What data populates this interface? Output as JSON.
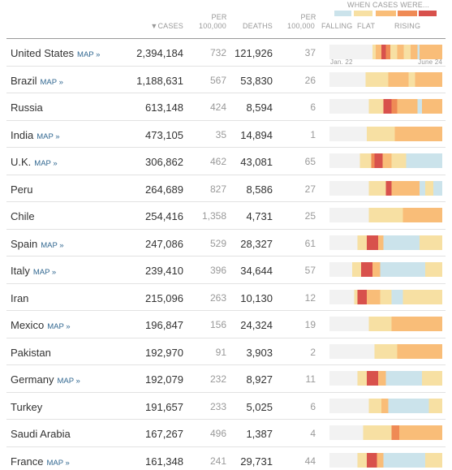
{
  "header": {
    "sort_arrow": "▼",
    "cases": "CASES",
    "cases_per_top": "PER",
    "cases_per_bottom": "100,000",
    "deaths": "DEATHS",
    "deaths_per_top": "PER",
    "deaths_per_bottom": "100,000",
    "legend_title": "WHEN CASES WERE...",
    "falling": "FALLING",
    "flat": "FLAT",
    "rising": "RISING",
    "start_date": "Jan. 22",
    "end_date": "June 24"
  },
  "table": {
    "rows": [
      {
        "country": "United States",
        "map": "MAP »",
        "cases": "2,394,184",
        "cases_per_100k": "732",
        "deaths": "121,926",
        "deaths_per_100k": "37"
      },
      {
        "country": "Brazil",
        "map": "MAP »",
        "cases": "1,188,631",
        "cases_per_100k": "567",
        "deaths": "53,830",
        "deaths_per_100k": "26"
      },
      {
        "country": "Russia",
        "cases": "613,148",
        "cases_per_100k": "424",
        "deaths": "8,594",
        "deaths_per_100k": "6"
      },
      {
        "country": "India",
        "map": "MAP »",
        "cases": "473,105",
        "cases_per_100k": "35",
        "deaths": "14,894",
        "deaths_per_100k": "1"
      },
      {
        "country": "U.K.",
        "map": "MAP »",
        "cases": "306,862",
        "cases_per_100k": "462",
        "deaths": "43,081",
        "deaths_per_100k": "65"
      },
      {
        "country": "Peru",
        "cases": "264,689",
        "cases_per_100k": "827",
        "deaths": "8,586",
        "deaths_per_100k": "27"
      },
      {
        "country": "Chile",
        "cases": "254,416",
        "cases_per_100k": "1,358",
        "deaths": "4,731",
        "deaths_per_100k": "25"
      },
      {
        "country": "Spain",
        "map": "MAP »",
        "cases": "247,086",
        "cases_per_100k": "529",
        "deaths": "28,327",
        "deaths_per_100k": "61"
      },
      {
        "country": "Italy",
        "map": "MAP »",
        "cases": "239,410",
        "cases_per_100k": "396",
        "deaths": "34,644",
        "deaths_per_100k": "57"
      },
      {
        "country": "Iran",
        "cases": "215,096",
        "cases_per_100k": "263",
        "deaths": "10,130",
        "deaths_per_100k": "12"
      },
      {
        "country": "Mexico",
        "map": "MAP »",
        "cases": "196,847",
        "cases_per_100k": "156",
        "deaths": "24,324",
        "deaths_per_100k": "19"
      },
      {
        "country": "Pakistan",
        "cases": "192,970",
        "cases_per_100k": "91",
        "deaths": "3,903",
        "deaths_per_100k": "2"
      },
      {
        "country": "Germany",
        "map": "MAP »",
        "cases": "192,079",
        "cases_per_100k": "232",
        "deaths": "8,927",
        "deaths_per_100k": "11"
      },
      {
        "country": "Turkey",
        "cases": "191,657",
        "cases_per_100k": "233",
        "deaths": "5,025",
        "deaths_per_100k": "6"
      },
      {
        "country": "Saudi Arabia",
        "cases": "167,267",
        "cases_per_100k": "496",
        "deaths": "1,387",
        "deaths_per_100k": "4"
      },
      {
        "country": "France",
        "map": "MAP »",
        "cases": "161,348",
        "cases_per_100k": "241",
        "deaths": "29,731",
        "deaths_per_100k": "44"
      }
    ]
  }
}
